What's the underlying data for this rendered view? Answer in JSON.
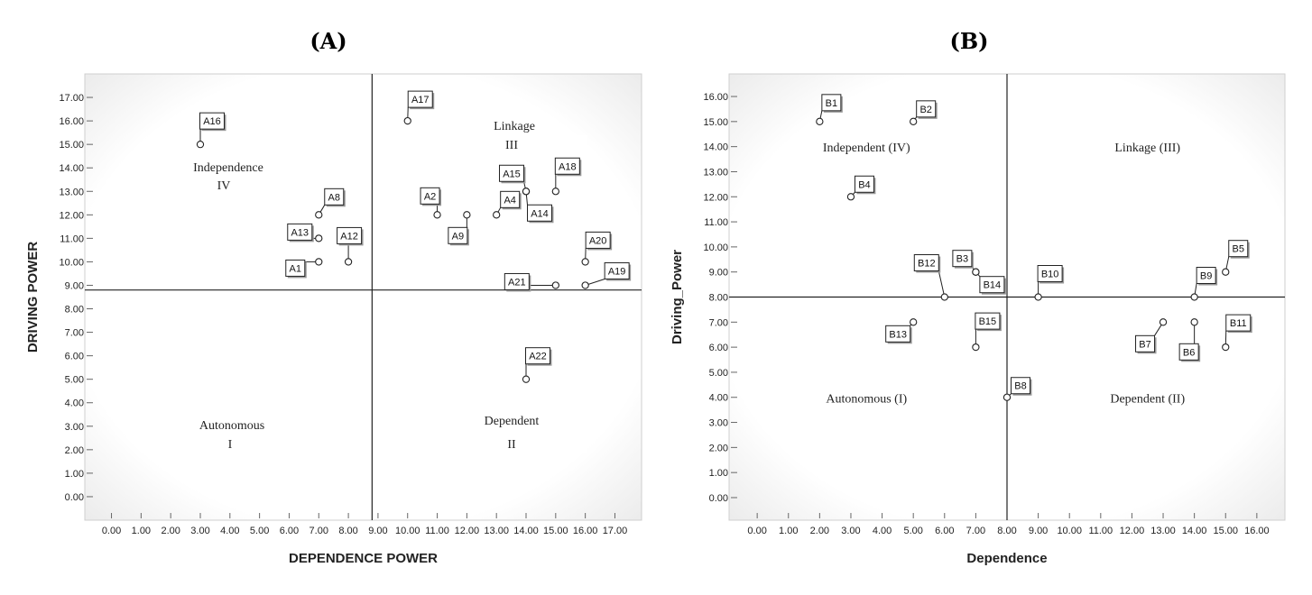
{
  "chart_data": [
    {
      "type": "scatter",
      "title": "(A)",
      "xlabel": "DEPENDENCE POWER",
      "ylabel": "DRIVING POWER",
      "xticks": [
        "0.00",
        "1.00",
        "2.00",
        "3.00",
        "4.00",
        "5.00",
        "6.00",
        "7.00",
        "8.00",
        "9.00",
        "10.00",
        "11.00",
        "12.00",
        "13.00",
        "14.00",
        "15.00",
        "16.00",
        "17.00"
      ],
      "yticks": [
        "0.00",
        "1.00",
        "2.00",
        "3.00",
        "4.00",
        "5.00",
        "6.00",
        "7.00",
        "8.00",
        "9.00",
        "10.00",
        "11.00",
        "12.00",
        "13.00",
        "14.00",
        "15.00",
        "16.00",
        "17.00"
      ],
      "xlim": [
        -0.9,
        17.9
      ],
      "ylim": [
        -1,
        18
      ],
      "divider": {
        "x": 8.8,
        "y": 8.8
      },
      "quadrants": [
        {
          "name": "Independence",
          "roman": "IV",
          "x": 4.0,
          "y": 13.4
        },
        {
          "name": "Linkage",
          "roman": "III",
          "x": 13.5,
          "y": 15.0
        },
        {
          "name": "Autonomous",
          "roman": "I",
          "x": 4.0,
          "y": 2.4
        },
        {
          "name": "Dependent",
          "roman": "II",
          "x": 13.5,
          "y": 2.4
        }
      ],
      "points": [
        {
          "label": "A16",
          "x": 3,
          "y": 15
        },
        {
          "label": "A8",
          "x": 7,
          "y": 12
        },
        {
          "label": "A13",
          "x": 7,
          "y": 11
        },
        {
          "label": "A12",
          "x": 8,
          "y": 10
        },
        {
          "label": "A1",
          "x": 7,
          "y": 10
        },
        {
          "label": "A17",
          "x": 10,
          "y": 16
        },
        {
          "label": "A2",
          "x": 11,
          "y": 12
        },
        {
          "label": "A4",
          "x": 13,
          "y": 12
        },
        {
          "label": "A9",
          "x": 12,
          "y": 12
        },
        {
          "label": "A15",
          "x": 14,
          "y": 13
        },
        {
          "label": "A14",
          "x": 14,
          "y": 13
        },
        {
          "label": "A18",
          "x": 15,
          "y": 13
        },
        {
          "label": "A20",
          "x": 16,
          "y": 10
        },
        {
          "label": "A19",
          "x": 16,
          "y": 9
        },
        {
          "label": "A21",
          "x": 15,
          "y": 9
        },
        {
          "label": "A22",
          "x": 14,
          "y": 5
        }
      ]
    },
    {
      "type": "scatter",
      "title": "(B)",
      "xlabel": "Dependence",
      "ylabel": "Driving_Power",
      "xticks": [
        "0.00",
        "1.00",
        "2.00",
        "3.00",
        "4.00",
        "5.00",
        "6.00",
        "7.00",
        "8.00",
        "9.00",
        "10.00",
        "11.00",
        "12.00",
        "13.00",
        "14.00",
        "15.00",
        "16.00"
      ],
      "yticks": [
        "0.00",
        "1.00",
        "2.00",
        "3.00",
        "4.00",
        "5.00",
        "6.00",
        "7.00",
        "8.00",
        "9.00",
        "10.00",
        "11.00",
        "12.00",
        "13.00",
        "14.00",
        "15.00",
        "16.00"
      ],
      "xlim": [
        -0.9,
        16.9
      ],
      "ylim": [
        -0.9,
        16.9
      ],
      "divider": {
        "x": 8,
        "y": 8
      },
      "quadrants": [
        {
          "name": "Independent (IV)",
          "x": 3.5,
          "y": 13.8
        },
        {
          "name": "Linkage (III)",
          "x": 12.5,
          "y": 13.8
        },
        {
          "name": "Autonomous (I)",
          "x": 3.5,
          "y": 3.8
        },
        {
          "name": "Dependent (II)",
          "x": 12.5,
          "y": 3.8
        }
      ],
      "points": [
        {
          "label": "B1",
          "x": 2,
          "y": 15
        },
        {
          "label": "B2",
          "x": 5,
          "y": 15
        },
        {
          "label": "B4",
          "x": 3,
          "y": 12
        },
        {
          "label": "B12",
          "x": 6,
          "y": 8
        },
        {
          "label": "B3",
          "x": 7,
          "y": 9
        },
        {
          "label": "B14",
          "x": 7,
          "y": 9
        },
        {
          "label": "B10",
          "x": 9,
          "y": 8
        },
        {
          "label": "B5",
          "x": 15,
          "y": 9
        },
        {
          "label": "B9",
          "x": 14,
          "y": 8
        },
        {
          "label": "B13",
          "x": 5,
          "y": 7
        },
        {
          "label": "B15",
          "x": 7,
          "y": 6
        },
        {
          "label": "B8",
          "x": 8,
          "y": 4
        },
        {
          "label": "B7",
          "x": 13,
          "y": 7
        },
        {
          "label": "B6",
          "x": 14,
          "y": 7
        },
        {
          "label": "B11",
          "x": 15,
          "y": 6
        }
      ]
    }
  ]
}
